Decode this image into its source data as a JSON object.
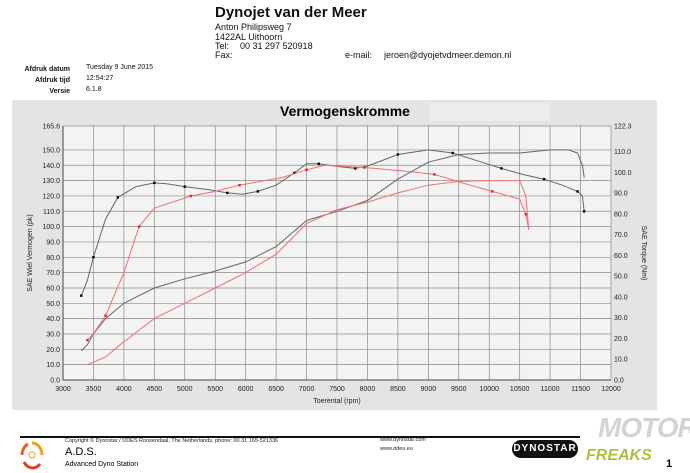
{
  "header": {
    "company": "Dynojet van der Meer",
    "street": "Anton Philipsweg 7",
    "city": "1422AL Uithoorn",
    "tel_label": "Tel:",
    "tel": "00 31 297 520918",
    "fax_label": "Fax:",
    "email_label": "e-mail:",
    "email": "jeroen@dyojetvdmeer.demon.nl"
  },
  "meta": {
    "date_label": "Afdruk datum",
    "date": "Tuesday 9 June 2015",
    "time_label": "Afdruk tijd",
    "time": "12:54:27",
    "version_label": "Versie",
    "version": "6.1.8"
  },
  "footer": {
    "copyright": "Copyright © Dynostar / DDES  Roosendaal, The Netherlands, phone: 00 31 165-521336",
    "brand": "A.D.S.",
    "brand_sub": "Advanced Dyno Station",
    "url1": "www.dynostar.com",
    "url2": "www.ddes.eu",
    "dynostar_logo": "DYNOSTAR",
    "page": "1",
    "watermark": "MOTOR FREAKS"
  },
  "colors": {
    "run1": "#666666",
    "run2": "#f07070",
    "marker1": "#000000",
    "marker2": "#e02020"
  },
  "chart_data": {
    "type": "line",
    "title": "Vermogenskromme",
    "xlabel": "Toerental (rpm)",
    "ylabel": "SAE Wiel Vermogen (pk)",
    "y2label": "SAE Torque (Nm)",
    "xlim": [
      3000,
      12000
    ],
    "ylim": [
      0,
      165.6
    ],
    "y2lim": [
      0,
      122.3
    ],
    "grid": true,
    "x_ticks": [
      "3000",
      "3500",
      "4000",
      "4500",
      "5000",
      "5500",
      "6000",
      "6500",
      "7000",
      "7500",
      "8000",
      "8500",
      "9000",
      "9500",
      "10000",
      "10500",
      "11000",
      "11500",
      "12000"
    ],
    "y_ticks": [
      "0.0",
      "10.0",
      "20.0",
      "30.0",
      "40.0",
      "50.0",
      "60.0",
      "70.0",
      "80.0",
      "90.0",
      "100.0",
      "110.0",
      "120.0",
      "130.0",
      "140.0",
      "150.0",
      "165.6"
    ],
    "y2_ticks": [
      "0.0",
      "10.0",
      "20.0",
      "30.0",
      "40.0",
      "50.0",
      "60.0",
      "70.0",
      "80.0",
      "90.0",
      "100.0",
      "110.0",
      "122.3"
    ],
    "series": [
      {
        "axis": "left",
        "color": "run1",
        "markers": false,
        "x": [
          3300,
          3400,
          3500,
          3700,
          4000,
          4500,
          5000,
          5500,
          6000,
          6500,
          7000,
          7500,
          8000,
          8500,
          9000,
          9500,
          10000,
          10500,
          11000,
          11300,
          11450,
          11530,
          11560
        ],
        "y": [
          19,
          23,
          30,
          40,
          50,
          60,
          66,
          71,
          77,
          87,
          104,
          110,
          117,
          131,
          142,
          147,
          148,
          148,
          150,
          150,
          148,
          140,
          132
        ]
      },
      {
        "axis": "right",
        "color": "run1",
        "markers": true,
        "x": [
          3300,
          3400,
          3500,
          3700,
          3900,
          4200,
          4500,
          4700,
          5000,
          5400,
          5700,
          5950,
          6200,
          6500,
          6800,
          7000,
          7200,
          7550,
          7800,
          8000,
          8500,
          9000,
          9400,
          9800,
          10200,
          10550,
          10900,
          11200,
          11450,
          11530,
          11560
        ],
        "y": [
          40.6,
          48,
          59.1,
          77.5,
          87.9,
          93.1,
          94.9,
          94.5,
          93.1,
          91.6,
          90.1,
          89.4,
          90.8,
          93.8,
          99.7,
          104.1,
          104.1,
          102.7,
          101.9,
          103,
          108.6,
          110.8,
          109.3,
          105.6,
          101.9,
          99,
          96.7,
          93.8,
          90.8,
          88.6,
          81.2
        ]
      },
      {
        "axis": "left",
        "color": "run2",
        "markers": false,
        "x": [
          3400,
          3700,
          4000,
          4500,
          5000,
          5500,
          6000,
          6500,
          7000,
          7500,
          8000,
          8500,
          9000,
          9500,
          10000,
          10500,
          10600,
          10650
        ],
        "y": [
          10,
          15,
          25,
          40,
          50,
          60,
          70,
          82,
          102,
          111,
          116,
          122,
          127,
          129.5,
          130,
          130,
          120,
          98
        ]
      },
      {
        "axis": "right",
        "color": "run2",
        "markers": true,
        "x": [
          3400,
          3500,
          3700,
          4000,
          4250,
          4500,
          5100,
          5500,
          5900,
          6600,
          7000,
          7300,
          7950,
          8550,
          9100,
          9600,
          10050,
          10500,
          10600,
          10650
        ],
        "y": [
          19.2,
          22.2,
          31,
          51.7,
          73.9,
          82.7,
          88.6,
          90.8,
          93.8,
          97.5,
          101.2,
          103.4,
          102.3,
          100.8,
          99,
          94.5,
          90.8,
          87.1,
          79.8,
          72.4
        ]
      }
    ]
  }
}
